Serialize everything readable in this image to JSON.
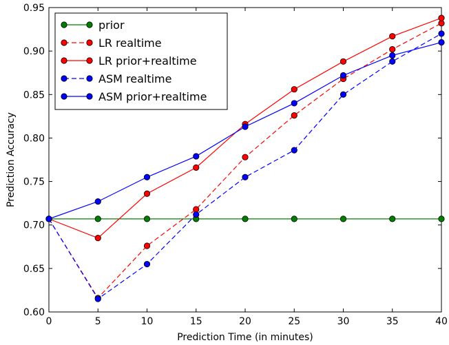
{
  "chart_data": {
    "type": "line",
    "title": "",
    "xlabel": "Prediction Time (in minutes)",
    "ylabel": "Prediction Accuracy",
    "x": [
      0,
      5,
      10,
      15,
      20,
      25,
      30,
      35,
      40
    ],
    "xlim": [
      0,
      40
    ],
    "ylim": [
      0.6,
      0.95
    ],
    "xticks": [
      0,
      5,
      10,
      15,
      20,
      25,
      30,
      35,
      40
    ],
    "xtick_labels": [
      "0",
      "5",
      "10",
      "15",
      "20",
      "25",
      "30",
      "35",
      "40"
    ],
    "yticks": [
      0.6,
      0.65,
      0.7,
      0.75,
      0.8,
      0.85,
      0.9,
      0.95
    ],
    "ytick_labels": [
      "0.60",
      "0.65",
      "0.70",
      "0.75",
      "0.80",
      "0.85",
      "0.90",
      "0.95"
    ],
    "grid": false,
    "legend_position": "top-left",
    "series": [
      {
        "name": "prior",
        "color": "#008000",
        "dashed": false,
        "values": [
          0.707,
          0.707,
          0.707,
          0.707,
          0.707,
          0.707,
          0.707,
          0.707,
          0.707
        ]
      },
      {
        "name": "LR realtime",
        "color": "#ff0000",
        "dashed": true,
        "values": [
          0.707,
          0.616,
          0.676,
          0.718,
          0.778,
          0.826,
          0.868,
          0.902,
          0.932
        ]
      },
      {
        "name": "LR prior+realtime",
        "color": "#ff0000",
        "dashed": false,
        "values": [
          0.707,
          0.685,
          0.736,
          0.766,
          0.816,
          0.856,
          0.888,
          0.917,
          0.938
        ]
      },
      {
        "name": "ASM realtime",
        "color": "#0000ff",
        "dashed": true,
        "values": [
          0.707,
          0.615,
          0.655,
          0.712,
          0.755,
          0.786,
          0.85,
          0.888,
          0.92
        ]
      },
      {
        "name": "ASM prior+realtime",
        "color": "#0000ff",
        "dashed": false,
        "values": [
          0.707,
          0.727,
          0.755,
          0.779,
          0.813,
          0.84,
          0.872,
          0.895,
          0.91
        ]
      }
    ]
  }
}
